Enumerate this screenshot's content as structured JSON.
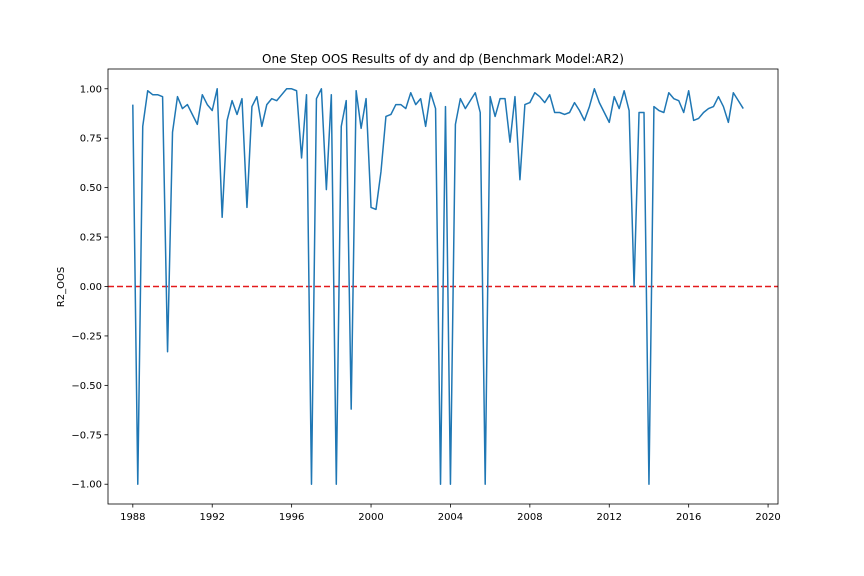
{
  "chart_data": {
    "type": "line",
    "title": "One Step OOS Results of dy and dp (Benchmark Model:AR2)",
    "xlabel": "",
    "ylabel": "R2_OOS",
    "xlim": [
      1986.75,
      2020.5
    ],
    "ylim": [
      -1.1,
      1.1
    ],
    "x_ticks": [
      1988,
      1992,
      1996,
      2000,
      2004,
      2008,
      2012,
      2016,
      2020
    ],
    "y_ticks": [
      -1.0,
      -0.75,
      -0.5,
      -0.25,
      0.0,
      0.25,
      0.5,
      0.75,
      1.0
    ],
    "x_tick_labels": [
      "1988",
      "1992",
      "1996",
      "2000",
      "2004",
      "2008",
      "2012",
      "2016",
      "2020"
    ],
    "y_tick_labels": [
      "−1.00",
      "−0.75",
      "−0.50",
      "−0.25",
      "0.00",
      "0.25",
      "0.50",
      "0.75",
      "1.00"
    ],
    "grid": false,
    "series": [
      {
        "color": "#1f77b4",
        "x": [
          1988.0,
          1988.25,
          1988.5,
          1988.75,
          1989.0,
          1989.25,
          1989.5,
          1989.75,
          1990.0,
          1990.25,
          1990.5,
          1990.75,
          1991.0,
          1991.25,
          1991.5,
          1991.75,
          1992.0,
          1992.25,
          1992.5,
          1992.75,
          1993.0,
          1993.25,
          1993.5,
          1993.75,
          1994.0,
          1994.25,
          1994.5,
          1994.75,
          1995.0,
          1995.25,
          1995.5,
          1995.75,
          1996.0,
          1996.25,
          1996.5,
          1996.75,
          1997.0,
          1997.25,
          1997.5,
          1997.75,
          1998.0,
          1998.25,
          1998.5,
          1998.75,
          1999.0,
          1999.25,
          1999.5,
          1999.75,
          2000.0,
          2000.25,
          2000.5,
          2000.75,
          2001.0,
          2001.25,
          2001.5,
          2001.75,
          2002.0,
          2002.25,
          2002.5,
          2002.75,
          2003.0,
          2003.25,
          2003.5,
          2003.75,
          2004.0,
          2004.25,
          2004.5,
          2004.75,
          2005.0,
          2005.25,
          2005.5,
          2005.75,
          2006.0,
          2006.25,
          2006.5,
          2006.75,
          2007.0,
          2007.25,
          2007.5,
          2007.75,
          2008.0,
          2008.25,
          2008.5,
          2008.75,
          2009.0,
          2009.25,
          2009.5,
          2009.75,
          2010.0,
          2010.25,
          2010.5,
          2010.75,
          2011.0,
          2011.25,
          2011.5,
          2011.75,
          2012.0,
          2012.25,
          2012.5,
          2012.75,
          2013.0,
          2013.25,
          2013.5,
          2013.75,
          2014.0,
          2014.25,
          2014.5,
          2014.75,
          2015.0,
          2015.25,
          2015.5,
          2015.75,
          2016.0,
          2016.25,
          2016.5,
          2016.75,
          2017.0,
          2017.25,
          2017.5,
          2017.75,
          2018.0,
          2018.25,
          2018.5,
          2018.75
        ],
        "y": [
          0.92,
          -1.0,
          0.81,
          0.99,
          0.97,
          0.97,
          0.96,
          -0.33,
          0.78,
          0.96,
          0.9,
          0.92,
          0.87,
          0.82,
          0.97,
          0.92,
          0.89,
          1.0,
          0.35,
          0.84,
          0.94,
          0.87,
          0.95,
          0.4,
          0.91,
          0.96,
          0.81,
          0.92,
          0.95,
          0.94,
          0.97,
          1.0,
          1.0,
          0.99,
          0.65,
          0.97,
          -1.0,
          0.95,
          1.0,
          0.49,
          0.97,
          -1.0,
          0.81,
          0.94,
          -0.62,
          0.99,
          0.8,
          0.95,
          0.4,
          0.39,
          0.58,
          0.86,
          0.87,
          0.92,
          0.92,
          0.9,
          0.98,
          0.92,
          0.95,
          0.81,
          0.98,
          0.9,
          -1.0,
          0.91,
          -1.0,
          0.82,
          0.95,
          0.9,
          0.94,
          0.98,
          0.88,
          -1.0,
          0.96,
          0.86,
          0.95,
          0.95,
          0.73,
          0.96,
          0.54,
          0.92,
          0.93,
          0.98,
          0.96,
          0.93,
          0.97,
          0.88,
          0.88,
          0.87,
          0.88,
          0.93,
          0.89,
          0.84,
          0.91,
          1.0,
          0.93,
          0.88,
          0.83,
          0.96,
          0.9,
          0.99,
          0.89,
          0.0,
          0.88,
          0.88,
          -1.0,
          0.91,
          0.89,
          0.88,
          0.98,
          0.95,
          0.94,
          0.88,
          0.99,
          0.84,
          0.85,
          0.88,
          0.9,
          0.91,
          0.96,
          0.91,
          0.83,
          0.98,
          0.94,
          0.9
        ]
      }
    ],
    "reference_line": {
      "y": 0.0,
      "color": "#e41a1c",
      "style": "dashed"
    }
  }
}
